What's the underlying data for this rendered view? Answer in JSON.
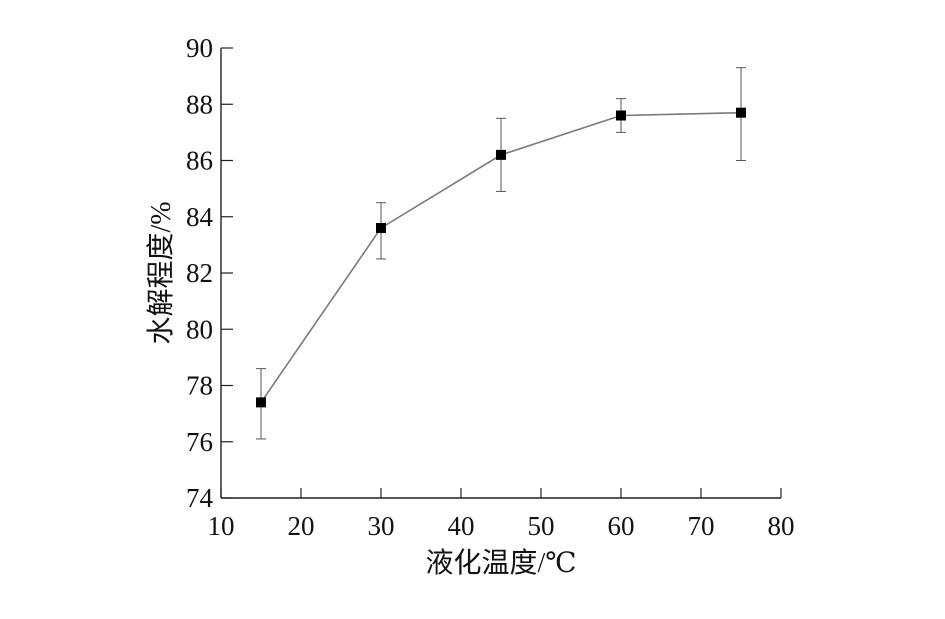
{
  "chart_data": {
    "type": "line",
    "title": "",
    "xlabel": "液化温度/℃",
    "ylabel": "水解程度/%",
    "xlim": [
      10,
      80
    ],
    "ylim": [
      74,
      90
    ],
    "xticks": [
      10,
      20,
      30,
      40,
      50,
      60,
      70,
      80
    ],
    "yticks": [
      74,
      76,
      78,
      80,
      82,
      84,
      86,
      88,
      90
    ],
    "grid": false,
    "legend": "none",
    "series": [
      {
        "x": [
          15,
          30,
          45,
          60,
          75
        ],
        "y": [
          77.4,
          83.6,
          86.2,
          87.6,
          87.7
        ],
        "err_low": [
          76.1,
          82.5,
          84.9,
          87.0,
          86.0
        ],
        "err_high": [
          78.6,
          84.5,
          87.5,
          88.2,
          89.3
        ],
        "marker": "square",
        "line_color": "#7a7a7a",
        "marker_color": "#000000"
      }
    ]
  }
}
